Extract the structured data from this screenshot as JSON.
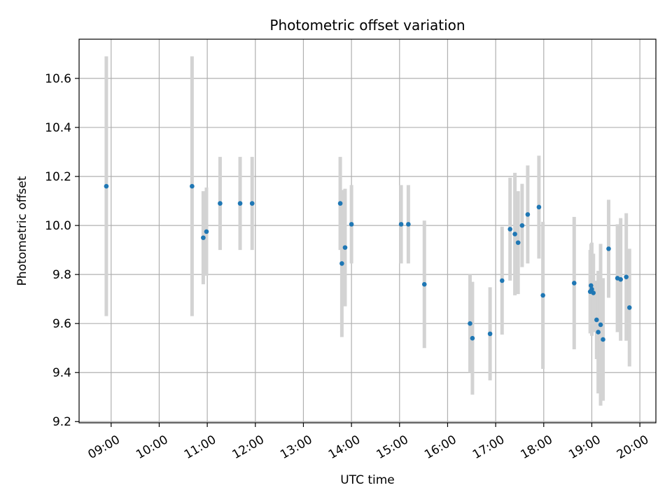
{
  "chart_data": {
    "type": "scatter",
    "title": "Photometric offset variation",
    "xlabel": "UTC time",
    "ylabel": "Photometric offset",
    "xlim": [
      "08:20",
      "20:20"
    ],
    "ylim": [
      9.195,
      10.76
    ],
    "grid": true,
    "x_ticks": [
      "09:00",
      "10:00",
      "11:00",
      "12:00",
      "13:00",
      "14:00",
      "15:00",
      "16:00",
      "17:00",
      "18:00",
      "19:00",
      "20:00"
    ],
    "y_ticks": [
      "9.2",
      "9.4",
      "9.6",
      "9.8",
      "10.0",
      "10.2",
      "10.4",
      "10.6"
    ],
    "colors": {
      "point": "#1f77b4",
      "errorbar": "#d3d3d3",
      "grid": "#b0b0b0"
    },
    "points": [
      {
        "t": "08:54",
        "y": 10.16,
        "err": 0.53
      },
      {
        "t": "10:41",
        "y": 10.16,
        "err": 0.53
      },
      {
        "t": "10:55",
        "y": 9.95,
        "err": 0.19
      },
      {
        "t": "10:59",
        "y": 9.975,
        "err": 0.18
      },
      {
        "t": "11:16",
        "y": 10.09,
        "err": 0.19
      },
      {
        "t": "11:41",
        "y": 10.09,
        "err": 0.19
      },
      {
        "t": "11:56",
        "y": 10.09,
        "err": 0.19
      },
      {
        "t": "13:46",
        "y": 10.09,
        "err": 0.19
      },
      {
        "t": "13:48",
        "y": 9.845,
        "err": 0.3
      },
      {
        "t": "13:52",
        "y": 9.91,
        "err": 0.24
      },
      {
        "t": "14:00",
        "y": 10.005,
        "err": 0.16
      },
      {
        "t": "15:02",
        "y": 10.005,
        "err": 0.16
      },
      {
        "t": "15:11",
        "y": 10.005,
        "err": 0.16
      },
      {
        "t": "15:31",
        "y": 9.76,
        "err": 0.26
      },
      {
        "t": "16:28",
        "y": 9.6,
        "err": 0.2
      },
      {
        "t": "16:31",
        "y": 9.54,
        "err": 0.23
      },
      {
        "t": "16:53",
        "y": 9.558,
        "err": 0.19
      },
      {
        "t": "17:08",
        "y": 9.775,
        "err": 0.22
      },
      {
        "t": "17:18",
        "y": 9.985,
        "err": 0.21
      },
      {
        "t": "17:24",
        "y": 9.965,
        "err": 0.25
      },
      {
        "t": "17:28",
        "y": 9.93,
        "err": 0.21
      },
      {
        "t": "17:33",
        "y": 10.0,
        "err": 0.17
      },
      {
        "t": "17:40",
        "y": 10.045,
        "err": 0.2
      },
      {
        "t": "17:54",
        "y": 10.075,
        "err": 0.21
      },
      {
        "t": "17:59",
        "y": 9.715,
        "err": 0.3
      },
      {
        "t": "18:38",
        "y": 9.765,
        "err": 0.27
      },
      {
        "t": "18:58",
        "y": 9.73,
        "err": 0.17
      },
      {
        "t": "18:59",
        "y": 9.755,
        "err": 0.17
      },
      {
        "t": "19:00",
        "y": 9.74,
        "err": 0.19
      },
      {
        "t": "19:02",
        "y": 9.725,
        "err": 0.16
      },
      {
        "t": "19:06",
        "y": 9.615,
        "err": 0.16
      },
      {
        "t": "19:08",
        "y": 9.565,
        "err": 0.25
      },
      {
        "t": "19:11",
        "y": 9.595,
        "err": 0.33
      },
      {
        "t": "19:14",
        "y": 9.535,
        "err": 0.25
      },
      {
        "t": "19:21",
        "y": 9.905,
        "err": 0.2
      },
      {
        "t": "19:32",
        "y": 9.785,
        "err": 0.22
      },
      {
        "t": "19:36",
        "y": 9.78,
        "err": 0.25
      },
      {
        "t": "19:43",
        "y": 9.79,
        "err": 0.26
      },
      {
        "t": "19:47",
        "y": 9.665,
        "err": 0.24
      }
    ]
  }
}
